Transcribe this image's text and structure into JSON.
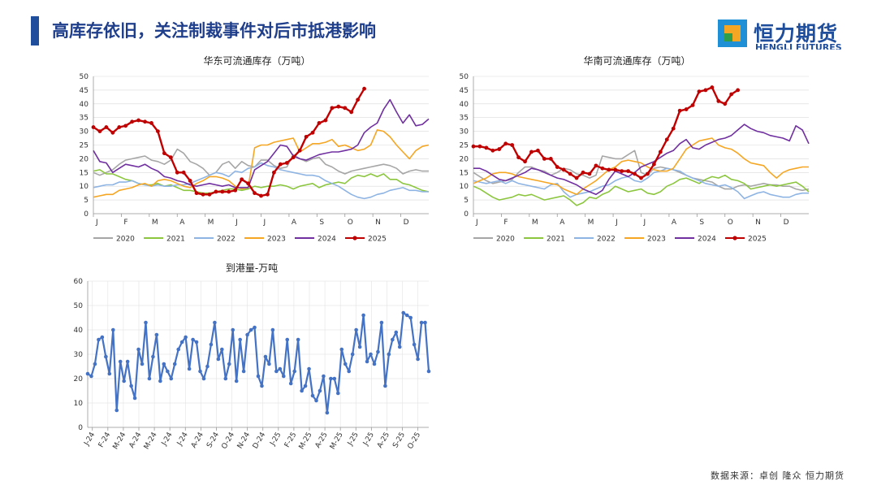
{
  "header": {
    "title": "高库存依旧，关注制裁事件对后市抵港影响"
  },
  "logo": {
    "text": "恒力期货",
    "sub": "HENGLI FUTURES",
    "colors": [
      "#1f8fd6",
      "#f5a623",
      "#2e9e4a"
    ]
  },
  "footer": {
    "source": "数据来源：卓创  隆众  恒力期货"
  },
  "chart_data": [
    {
      "type": "line",
      "title": "华东可流通库存（万吨）",
      "x_ticks": [
        "J",
        "F",
        "M",
        "A",
        "M",
        "J",
        "J",
        "A",
        "S",
        "O",
        "N",
        "D"
      ],
      "ylim": [
        0,
        50
      ],
      "y_ticks": [
        0,
        5,
        10,
        15,
        20,
        25,
        30,
        35,
        40,
        45,
        50
      ],
      "legend": "bottom",
      "series": [
        {
          "name": "2020",
          "color": "#a6a6a6",
          "values": [
            15,
            14,
            15,
            16,
            18,
            19.5,
            20,
            20.5,
            21,
            19.5,
            19,
            18,
            19.5,
            23.5,
            22,
            19,
            18,
            16.5,
            14,
            15,
            18,
            19,
            16.5,
            19,
            17.5,
            17,
            19.5,
            19.5,
            17.5,
            16.5,
            17,
            21.5,
            20,
            19,
            20,
            20.5,
            18,
            17,
            15.5,
            14.5,
            15.5,
            16,
            16.5,
            17,
            17.5,
            18,
            17.5,
            16.5,
            14.5,
            15.5,
            16,
            15.5,
            15.5
          ]
        },
        {
          "name": "2021",
          "color": "#8cc63f",
          "values": [
            15.5,
            16,
            14.5,
            14.5,
            13.5,
            12.5,
            12,
            11,
            10.5,
            10.5,
            11,
            10,
            10.5,
            9.5,
            8.5,
            8.5,
            8,
            7.5,
            7.5,
            8,
            8.5,
            9,
            9,
            8.5,
            9,
            10,
            9.5,
            10,
            10,
            10.5,
            10,
            9,
            10,
            10.5,
            11,
            9.5,
            10.5,
            11,
            11.5,
            11,
            13,
            14,
            13.5,
            14.5,
            13.5,
            14.5,
            12.5,
            12.5,
            11,
            10.5,
            9.5,
            8.5,
            8
          ]
        },
        {
          "name": "2022",
          "color": "#8eb4e3",
          "values": [
            9.5,
            10,
            10.5,
            10.5,
            11.5,
            11.5,
            12,
            11,
            10.5,
            10,
            10.5,
            10,
            10,
            10.5,
            10.5,
            11,
            12,
            13,
            14,
            15,
            14.5,
            13.5,
            15.5,
            15,
            16.5,
            17,
            18.5,
            17.5,
            17,
            16,
            15.5,
            15,
            14.5,
            14,
            14,
            13.5,
            12,
            11,
            10,
            8.5,
            7,
            6,
            5.5,
            6,
            7,
            7.5,
            8.5,
            9,
            9.5,
            8.5,
            8.5,
            8,
            8
          ]
        },
        {
          "name": "2023",
          "color": "#f5a623",
          "values": [
            6,
            6.5,
            7,
            7,
            8.5,
            9,
            9.5,
            10.5,
            11,
            10,
            12,
            12.5,
            12,
            11,
            10,
            9.5,
            11,
            12,
            13.5,
            13.5,
            13,
            12,
            10,
            9,
            9.5,
            24,
            25,
            25,
            26,
            26.5,
            27,
            27.5,
            22.5,
            24,
            25.5,
            25.5,
            26,
            27,
            24.5,
            25,
            24,
            23,
            23.5,
            25,
            30.5,
            30,
            28,
            25,
            22.5,
            20,
            23,
            24.5,
            25
          ]
        },
        {
          "name": "2024",
          "color": "#7030a0",
          "values": [
            23,
            19,
            18.5,
            15,
            16.5,
            18,
            17.5,
            17,
            18,
            16.5,
            15.5,
            13.5,
            13,
            12,
            11.5,
            10.5,
            10,
            10.5,
            11,
            10.5,
            10,
            10.5,
            9.5,
            9.5,
            9.5,
            16,
            17.5,
            19,
            22,
            25,
            24.5,
            21,
            20,
            19.5,
            20.5,
            21.5,
            22,
            22.5,
            22.5,
            23,
            23.5,
            25,
            29.5,
            31.5,
            33,
            38,
            41.5,
            37,
            33,
            36,
            32,
            32.5,
            34.5
          ]
        },
        {
          "name": "2025",
          "color": "#c00000",
          "marker": true,
          "values": [
            31.5,
            30,
            31.5,
            29.5,
            31.5,
            32,
            33.5,
            34,
            33.5,
            33,
            30,
            22,
            20.5,
            15,
            15,
            12,
            7.5,
            7,
            7,
            8,
            8,
            8,
            8.5,
            12.5,
            11,
            7.5,
            6.5,
            7,
            15,
            18,
            18.5,
            20.5,
            23,
            28,
            29.5,
            33,
            34,
            38.5,
            39,
            38.5,
            37,
            41.5,
            45.5
          ]
        }
      ]
    },
    {
      "type": "line",
      "title": "华南可流通库存（万吨）",
      "x_ticks": [
        "J",
        "F",
        "M",
        "A",
        "M",
        "J",
        "J",
        "A",
        "S",
        "O",
        "N",
        "D"
      ],
      "ylim": [
        0,
        50
      ],
      "y_ticks": [
        0,
        5,
        10,
        15,
        20,
        25,
        30,
        35,
        40,
        45,
        50
      ],
      "legend": "bottom",
      "series": [
        {
          "name": "2020",
          "color": "#a6a6a6",
          "values": [
            15,
            13.5,
            12,
            11,
            11.5,
            12,
            12.5,
            15,
            17,
            17,
            16,
            15.5,
            14,
            15,
            16.5,
            16,
            14.5,
            14,
            13,
            14,
            21,
            20.5,
            20,
            20,
            21.5,
            23,
            15,
            14,
            16.5,
            17,
            16.5,
            16,
            15,
            14,
            13,
            12.5,
            12,
            11.5,
            10,
            9,
            9,
            10,
            10.5,
            10,
            10.5,
            11,
            10.5,
            10.5,
            10,
            10,
            9,
            8.5,
            9
          ]
        },
        {
          "name": "2021",
          "color": "#8cc63f",
          "values": [
            10,
            9,
            7.5,
            6,
            5,
            5.5,
            6,
            7,
            6.5,
            7,
            6,
            5,
            5.5,
            6,
            6.5,
            5,
            3,
            4,
            6,
            5.5,
            7,
            8,
            10,
            9,
            8,
            8.5,
            9,
            7.5,
            7,
            8,
            10,
            11,
            12.5,
            13,
            12,
            11,
            12.5,
            13.5,
            13,
            14,
            12.5,
            12,
            11,
            9,
            9.5,
            10,
            10.5,
            10,
            10.5,
            11,
            11.5,
            10,
            8
          ]
        },
        {
          "name": "2022",
          "color": "#8eb4e3",
          "values": [
            12,
            11.5,
            11,
            11.5,
            12,
            11,
            12,
            11,
            10.5,
            10,
            9.5,
            9,
            10.5,
            11,
            8,
            6,
            7,
            7.5,
            8,
            9,
            10,
            10.5,
            12,
            13,
            13.5,
            12,
            11.5,
            13,
            15,
            15.5,
            16.5,
            16,
            15.5,
            14,
            13,
            12,
            11,
            10.5,
            10,
            10.5,
            9.5,
            8,
            5.5,
            6.5,
            7.5,
            8,
            7,
            6.5,
            6,
            6,
            7,
            7.5,
            7.5
          ]
        },
        {
          "name": "2023",
          "color": "#f5a623",
          "values": [
            11,
            12,
            13,
            14.5,
            15,
            15,
            14.5,
            13.5,
            13,
            12.5,
            12,
            11.5,
            11,
            10.5,
            9,
            8,
            7,
            9,
            10.5,
            12,
            14,
            16,
            17,
            19,
            19.5,
            19,
            18.5,
            17,
            16,
            15.5,
            15.5,
            16.5,
            20,
            23.5,
            25,
            26.5,
            27,
            27.5,
            25,
            24,
            23.5,
            22,
            20,
            18.5,
            18,
            17.5,
            15,
            13,
            15,
            16,
            16.5,
            17,
            17
          ]
        },
        {
          "name": "2024",
          "color": "#7030a0",
          "values": [
            16.5,
            16.5,
            15.5,
            14,
            12.5,
            12,
            13,
            14,
            15,
            16.5,
            16,
            15,
            14,
            13,
            12.5,
            11.5,
            10.5,
            9,
            8,
            7,
            8.5,
            12.5,
            15.5,
            14.5,
            13.5,
            15,
            17,
            18,
            19,
            20.5,
            22,
            23,
            25.5,
            27,
            24,
            23.5,
            25,
            26,
            27,
            27.5,
            28.5,
            30.5,
            32.5,
            31,
            30,
            29.5,
            28.5,
            28,
            27.5,
            26.5,
            32,
            30.5,
            25.5
          ]
        },
        {
          "name": "2025",
          "color": "#c00000",
          "marker": true,
          "values": [
            24.5,
            24.5,
            24,
            23,
            23.5,
            25.5,
            25,
            20.5,
            19,
            22.5,
            23,
            20,
            20,
            17,
            16,
            14.5,
            13,
            15,
            14.5,
            17.5,
            16.5,
            16,
            16,
            15.5,
            15.5,
            14.5,
            13,
            14.5,
            18,
            22.5,
            27,
            31,
            37.5,
            38,
            39.5,
            44.5,
            45,
            46,
            41,
            40,
            43.5,
            45
          ]
        }
      ]
    },
    {
      "type": "line",
      "title": "到港量-万吨",
      "x_ticks": [
        "J-24",
        "F-24",
        "M-24",
        "A-24",
        "M-24",
        "J-24",
        "J-24",
        "A-24",
        "S-24",
        "O-24",
        "N-24",
        "D-24",
        "J-25",
        "F-25",
        "M-25",
        "A-25",
        "M-25",
        "J-25",
        "J-25",
        "A-25",
        "S-25",
        "O-25"
      ],
      "ylim": [
        0,
        60
      ],
      "y_ticks": [
        0,
        10,
        20,
        30,
        40,
        50,
        60
      ],
      "color": "#4472c4",
      "marker": true,
      "values": [
        22,
        21,
        26,
        36,
        37,
        29,
        22,
        40,
        7,
        27,
        19,
        27,
        17,
        12,
        32,
        26,
        43,
        20,
        29,
        38,
        19,
        26,
        23,
        20,
        26,
        32,
        35,
        37,
        24,
        36,
        35,
        23,
        20,
        25,
        34,
        43,
        28,
        32,
        20,
        26,
        40,
        19,
        36,
        23,
        38,
        40,
        41,
        21,
        17,
        29,
        26,
        40,
        23,
        24,
        21,
        36,
        18,
        23,
        36,
        15,
        17,
        24,
        13,
        11,
        15,
        21,
        6,
        20,
        20,
        14,
        32,
        26,
        23,
        30,
        40,
        33,
        46,
        27,
        30,
        26,
        31,
        43,
        17,
        30,
        36,
        39,
        33,
        47,
        46,
        45,
        34,
        28,
        43,
        43,
        23
      ]
    }
  ]
}
